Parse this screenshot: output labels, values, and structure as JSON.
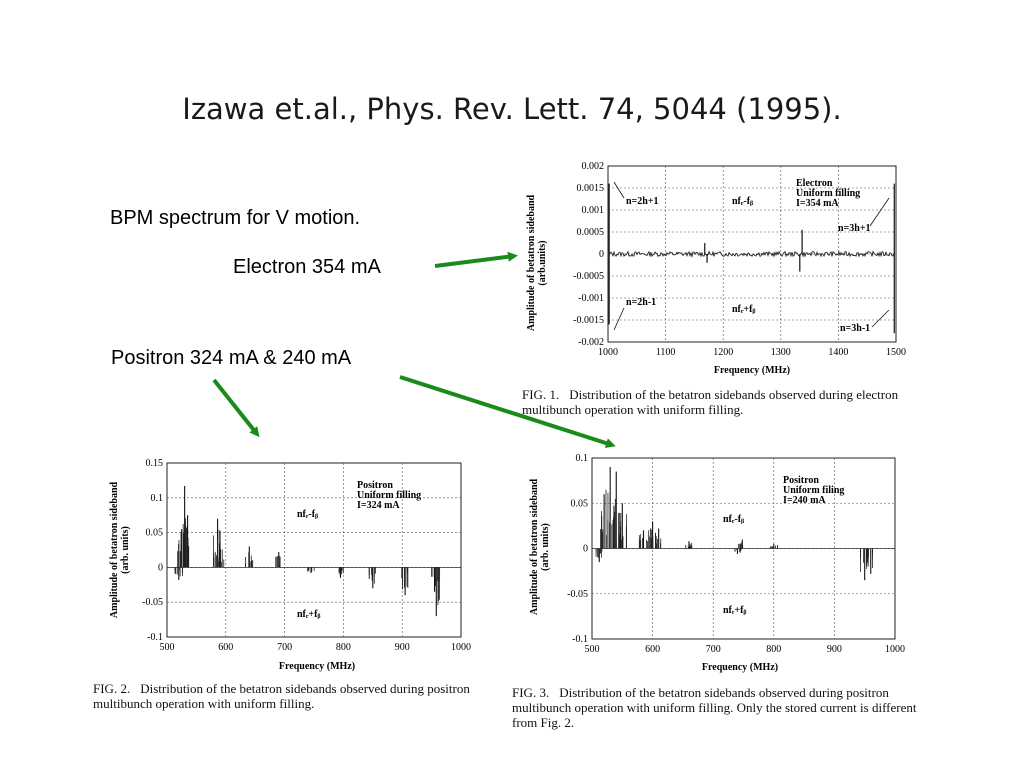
{
  "slide": {
    "title": "Izawa et.al., Phys. Rev. Lett. 74, 5044 (1995).",
    "notes": {
      "bpm": "BPM spectrum for V motion.",
      "electron": "Electron 354 mA",
      "positron": "Positron 324 mA &   240 mA"
    },
    "arrow_color": "#1a8a1a"
  },
  "chart_data": [
    {
      "type": "line",
      "figure": "FIG. 1.",
      "caption": "Distribution of the betatron sidebands observed during electron multibunch operation with uniform filling.",
      "xlabel": "Frequency  (MHz)",
      "ylabel": "Amplitude of betatron sideband (arb.units)",
      "xlim": [
        1000,
        1500
      ],
      "ylim": [
        -0.002,
        0.002
      ],
      "xticks": [
        "1000",
        "1100",
        "1200",
        "1300",
        "1400",
        "1500"
      ],
      "yticks": [
        "0.002",
        "0.0015",
        "0.001",
        "0.0005",
        "0",
        "-0.0005",
        "-0.001",
        "-0.0015",
        "-0.002"
      ],
      "grid": true,
      "annotations": {
        "upper_left": "n=2h+1",
        "upper_mid": "nfᵣ-fᵦ",
        "box_line1": "Electron",
        "box_line2": "Uniform  filling",
        "box_line3": "I=354  mA",
        "upper_right": "n=3h+1",
        "lower_left": "n=2h-1",
        "lower_mid": "nfᵣ+fᵦ",
        "lower_right": "n=3h-1"
      },
      "peaks": [
        {
          "x": 1002,
          "y": 0.0016
        },
        {
          "x": 1002,
          "y": -0.0016
        },
        {
          "x": 1168,
          "y": 0.00025
        },
        {
          "x": 1172,
          "y": -0.0002
        },
        {
          "x": 1337,
          "y": 0.00055
        },
        {
          "x": 1333,
          "y": -0.0004
        },
        {
          "x": 1497,
          "y": 0.0016
        },
        {
          "x": 1497,
          "y": -0.0018
        }
      ]
    },
    {
      "type": "bar",
      "figure": "FIG. 2.",
      "caption": "Distribution of the betatron sidebands observed during positron multibunch operation with uniform filling.",
      "xlabel": "Frequency  (MHz)",
      "ylabel": "Amplitude of betatron sideband (arb.  units)",
      "xlim": [
        500,
        1000
      ],
      "ylim": [
        -0.1,
        0.15
      ],
      "xticks": [
        "500",
        "600",
        "700",
        "800",
        "900",
        "1000"
      ],
      "yticks": [
        "0.15",
        "0.1",
        "0.05",
        "0",
        "-0.05",
        "-0.1"
      ],
      "grid": true,
      "annotations": {
        "box_line1": "Positron",
        "box_line2": "Uniform  filling",
        "box_line3": "I=324  mA",
        "upper_mid": "nfᵣ-fᵦ",
        "lower_mid": "nfᵣ+fᵦ"
      },
      "peaks": [
        {
          "x": 530,
          "y": 0.117
        },
        {
          "x": 525,
          "y": 0.055
        },
        {
          "x": 535,
          "y": 0.075
        },
        {
          "x": 520,
          "y": -0.018
        },
        {
          "x": 586,
          "y": 0.07
        },
        {
          "x": 590,
          "y": 0.035
        },
        {
          "x": 640,
          "y": 0.03
        },
        {
          "x": 690,
          "y": 0.022
        },
        {
          "x": 745,
          "y": -0.008
        },
        {
          "x": 795,
          "y": -0.015
        },
        {
          "x": 850,
          "y": -0.03
        },
        {
          "x": 905,
          "y": -0.04
        },
        {
          "x": 958,
          "y": -0.07
        },
        {
          "x": 955,
          "y": -0.035
        }
      ]
    },
    {
      "type": "bar",
      "figure": "FIG. 3.",
      "caption": "Distribution of the betatron sidebands observed during positron multibunch operation with uniform filling.  Only the stored current is different from Fig. 2.",
      "xlabel": "Frequency  (MHz)",
      "ylabel": "Amplitude of betatron sideband (arb.  units)",
      "xlim": [
        500,
        1000
      ],
      "ylim": [
        -0.1,
        0.1
      ],
      "xticks": [
        "500",
        "600",
        "700",
        "800",
        "900",
        "1000"
      ],
      "yticks": [
        "0.1",
        "0.05",
        "0",
        "-0.05",
        "-0.1"
      ],
      "grid": true,
      "annotations": {
        "box_line1": "Positron",
        "box_line2": "Uniform  filing",
        "box_line3": "I=240  mA",
        "upper_mid": "nfᵣ-fᵦ",
        "lower_mid": "nfᵣ+fᵦ"
      },
      "peaks": [
        {
          "x": 530,
          "y": 0.09
        },
        {
          "x": 540,
          "y": 0.085
        },
        {
          "x": 520,
          "y": 0.06
        },
        {
          "x": 550,
          "y": 0.05
        },
        {
          "x": 512,
          "y": -0.015
        },
        {
          "x": 600,
          "y": 0.03
        },
        {
          "x": 610,
          "y": 0.022
        },
        {
          "x": 585,
          "y": 0.02
        },
        {
          "x": 660,
          "y": 0.008
        },
        {
          "x": 748,
          "y": 0.01
        },
        {
          "x": 740,
          "y": -0.006
        },
        {
          "x": 800,
          "y": 0.005
        },
        {
          "x": 950,
          "y": -0.035
        },
        {
          "x": 960,
          "y": -0.028
        }
      ]
    }
  ]
}
